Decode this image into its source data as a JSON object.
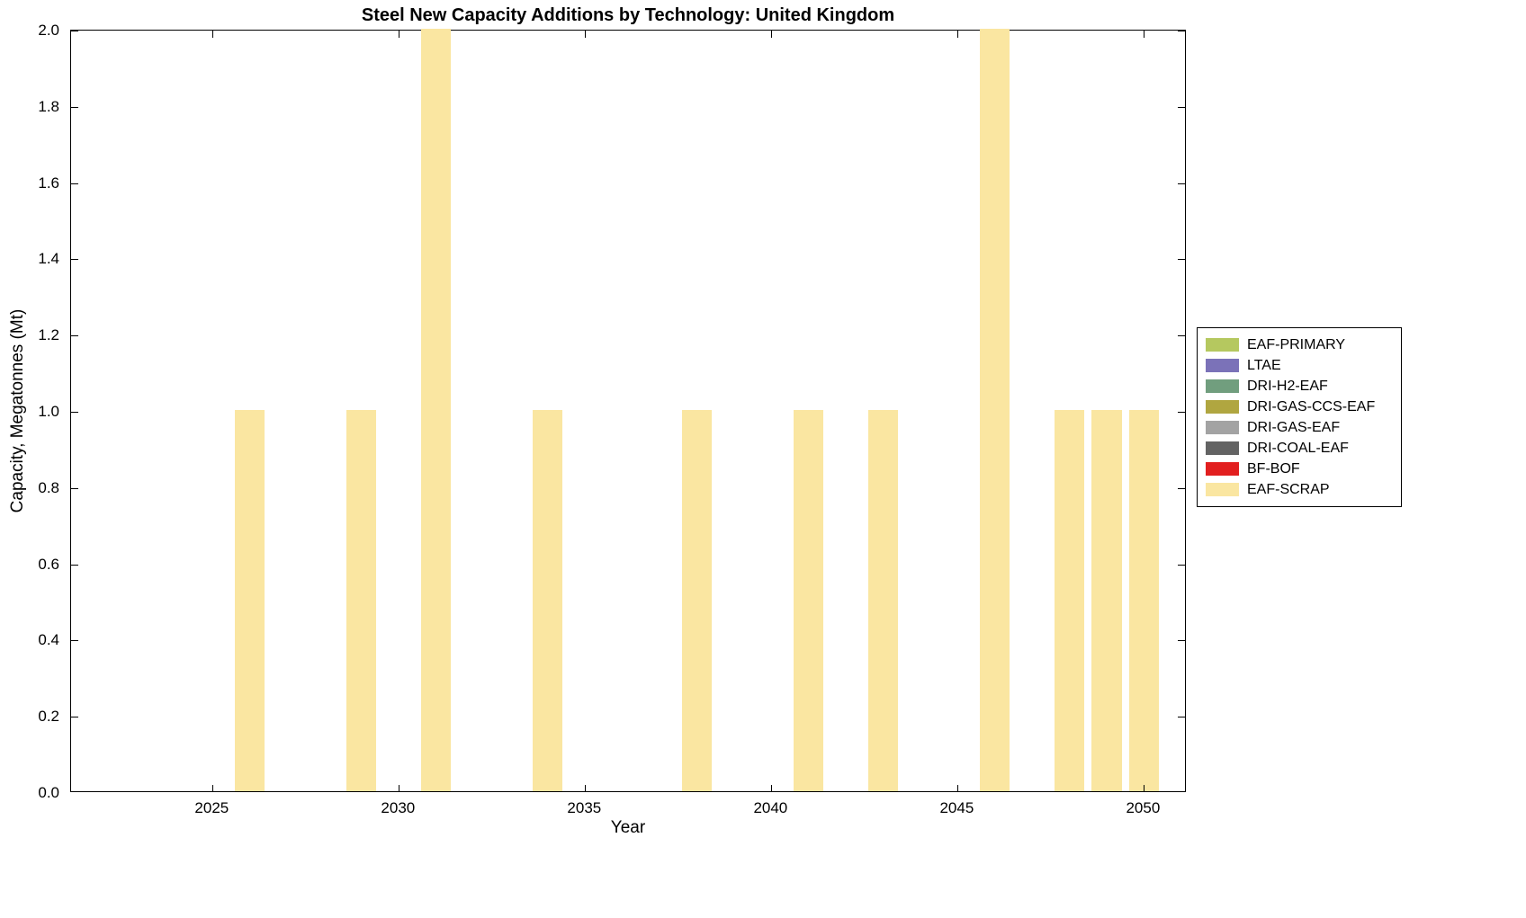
{
  "chart_data": {
    "type": "bar",
    "title": "Steel New Capacity Additions by Technology: United Kingdom",
    "xlabel": "Year",
    "ylabel": "Capacity, Megatonnes (Mt)",
    "xlim": [
      2021.2,
      2051.15
    ],
    "ylim": [
      0,
      2
    ],
    "xticks": [
      2025,
      2030,
      2035,
      2040,
      2045,
      2050
    ],
    "yticks": [
      0.0,
      0.2,
      0.4,
      0.6,
      0.8,
      1.0,
      1.2,
      1.4,
      1.6,
      1.8,
      2.0
    ],
    "ytick_labels": [
      "0.0",
      "0.2",
      "0.4",
      "0.6",
      "0.8",
      "1.0",
      "1.2",
      "1.4",
      "1.6",
      "1.8",
      "2.0"
    ],
    "bar_width_years": 0.8,
    "grid": false,
    "legend_position": "right-outside",
    "series": [
      {
        "name": "EAF-PRIMARY",
        "color": "#b5c85f",
        "x": [],
        "y": []
      },
      {
        "name": "LTAE",
        "color": "#7b72b8",
        "x": [],
        "y": []
      },
      {
        "name": "DRI-H2-EAF",
        "color": "#719e7e",
        "x": [],
        "y": []
      },
      {
        "name": "DRI-GAS-CCS-EAF",
        "color": "#b0a640",
        "x": [],
        "y": []
      },
      {
        "name": "DRI-GAS-EAF",
        "color": "#a3a3a3",
        "x": [],
        "y": []
      },
      {
        "name": "DRI-COAL-EAF",
        "color": "#636363",
        "x": [],
        "y": []
      },
      {
        "name": "BF-BOF",
        "color": "#e21f1f",
        "x": [],
        "y": []
      },
      {
        "name": "EAF-SCRAP",
        "color": "#fae6a1",
        "x": [
          2026,
          2029,
          2031,
          2034,
          2038,
          2041,
          2043,
          2046,
          2048,
          2049,
          2050
        ],
        "y": [
          1,
          1,
          2,
          1,
          1,
          1,
          1,
          2,
          1,
          1,
          1
        ]
      }
    ]
  }
}
